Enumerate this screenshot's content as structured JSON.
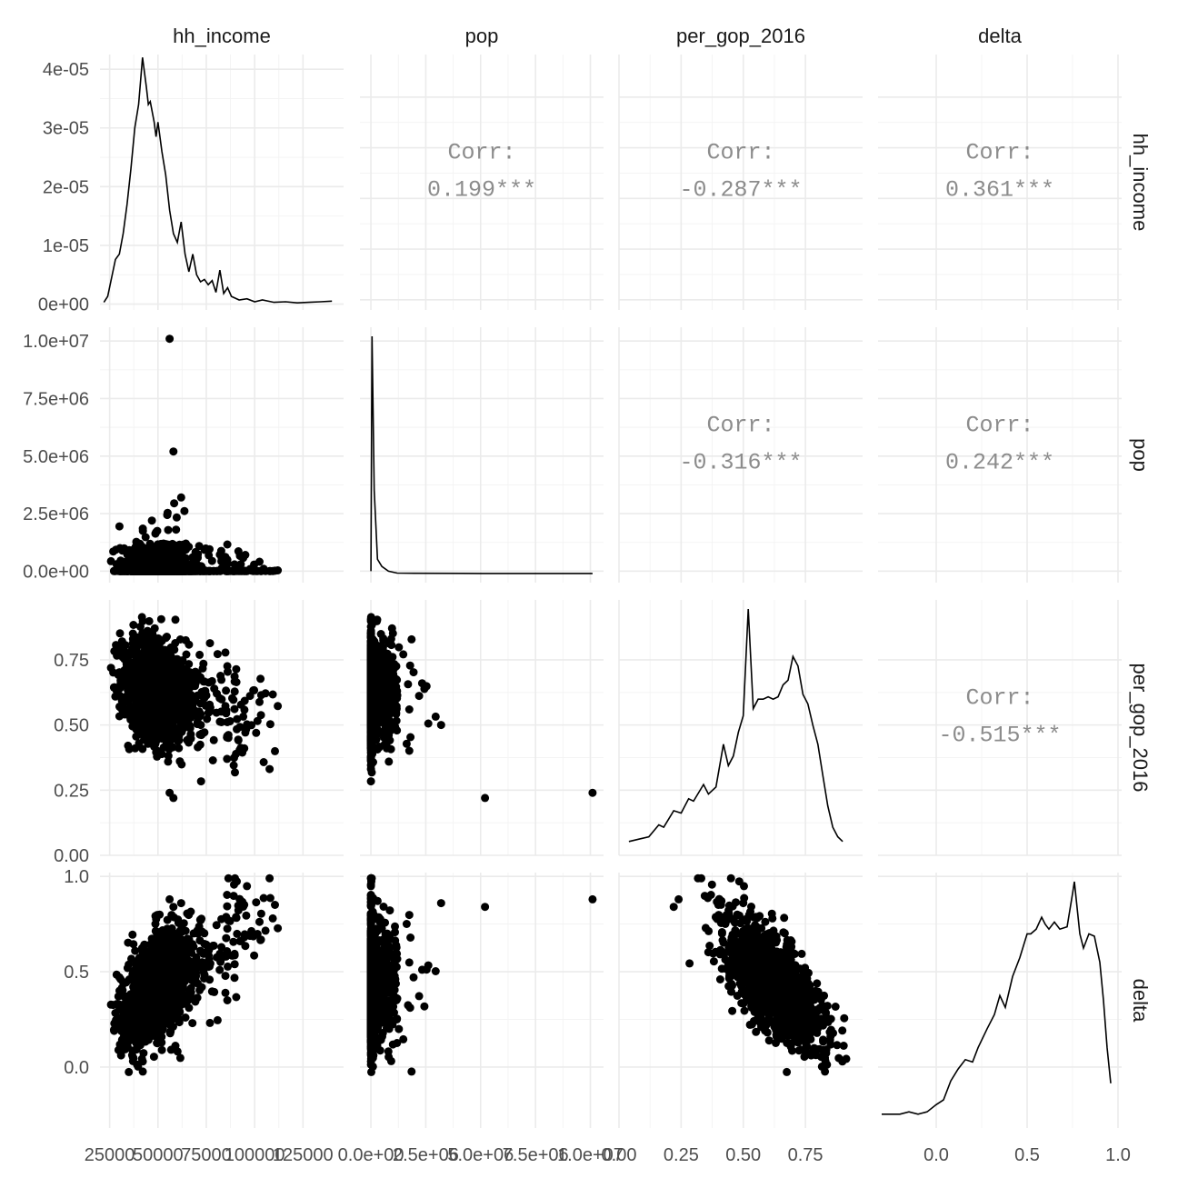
{
  "chart_data": {
    "type": "scatter-matrix",
    "variables": [
      "hh_income",
      "pop",
      "per_gop_2016",
      "delta"
    ],
    "axes": {
      "hh_income": {
        "range": [
          20000,
          146000
        ],
        "breaks": [
          25000,
          50000,
          75000,
          100000,
          125000
        ],
        "tick_labels": [
          "25000",
          "50000",
          "75000",
          "100000",
          "125000"
        ]
      },
      "pop": {
        "range": [
          -500000,
          10600000
        ],
        "breaks": [
          0,
          2500000,
          5000000,
          7500000,
          10000000
        ],
        "tick_labels": [
          "0.0e+00",
          "2.5e+06",
          "5.0e+06",
          "7.5e+06",
          "1.0e+07"
        ]
      },
      "per_gop_2016": {
        "range": [
          0,
          0.98
        ],
        "breaks": [
          0,
          0.25,
          0.5,
          0.75
        ],
        "tick_labels": [
          "0.00",
          "0.25",
          "0.50",
          "0.75"
        ]
      },
      "delta": {
        "range": [
          -0.32,
          1.02
        ],
        "breaks": [
          0,
          0.5,
          1
        ],
        "tick_labels": [
          "0.0",
          "0.5",
          "1.0"
        ]
      }
    },
    "density_axis": {
      "range": [
        -1e-06,
        4.25e-05
      ],
      "breaks": [
        0,
        1e-05,
        2e-05,
        3e-05,
        4e-05
      ],
      "tick_labels": [
        "0e+00",
        "1e-05",
        "2e-05",
        "3e-05",
        "4e-05"
      ]
    },
    "correlations": [
      {
        "row": "hh_income",
        "col": "pop",
        "label": "Corr:",
        "value": "0.199***"
      },
      {
        "row": "hh_income",
        "col": "per_gop_2016",
        "label": "Corr:",
        "value": "-0.287***"
      },
      {
        "row": "hh_income",
        "col": "delta",
        "label": "Corr:",
        "value": "0.361***"
      },
      {
        "row": "pop",
        "col": "per_gop_2016",
        "label": "Corr:",
        "value": "-0.316***"
      },
      {
        "row": "pop",
        "col": "delta",
        "label": "Corr:",
        "value": "0.242***"
      },
      {
        "row": "per_gop_2016",
        "col": "delta",
        "label": "Corr:",
        "value": "-0.515***"
      }
    ],
    "densities": {
      "hh_income": [
        [
          22000,
          3e-07
        ],
        [
          24000,
          1.3e-06
        ],
        [
          26000,
          4.5e-06
        ],
        [
          28000,
          7.6e-06
        ],
        [
          30000,
          8.5e-06
        ],
        [
          32000,
          1.2e-05
        ],
        [
          34000,
          1.7e-05
        ],
        [
          36000,
          2.3e-05
        ],
        [
          38000,
          3e-05
        ],
        [
          40000,
          3.4e-05
        ],
        [
          42000,
          4.2e-05
        ],
        [
          44000,
          3.7e-05
        ],
        [
          45000,
          3.4e-05
        ],
        [
          46000,
          3.45e-05
        ],
        [
          48000,
          3.1e-05
        ],
        [
          49000,
          2.85e-05
        ],
        [
          50000,
          3.1e-05
        ],
        [
          52000,
          2.6e-05
        ],
        [
          54000,
          2.2e-05
        ],
        [
          56000,
          1.6e-05
        ],
        [
          58000,
          1.2e-05
        ],
        [
          60000,
          1.05e-05
        ],
        [
          62000,
          1.4e-05
        ],
        [
          64000,
          8.5e-06
        ],
        [
          66000,
          5.5e-06
        ],
        [
          68000,
          8.5e-06
        ],
        [
          70000,
          5e-06
        ],
        [
          72000,
          3.8e-06
        ],
        [
          74000,
          4.2e-06
        ],
        [
          76000,
          3.3e-06
        ],
        [
          78000,
          4e-06
        ],
        [
          80000,
          2e-06
        ],
        [
          82000,
          5.8e-06
        ],
        [
          84000,
          1.8e-06
        ],
        [
          86000,
          2.8e-06
        ],
        [
          88000,
          1.3e-06
        ],
        [
          92000,
          7e-07
        ],
        [
          96000,
          9e-07
        ],
        [
          100000,
          4e-07
        ],
        [
          104000,
          7e-07
        ],
        [
          110000,
          3e-07
        ],
        [
          116000,
          4e-07
        ],
        [
          122000,
          2e-07
        ],
        [
          128000,
          3e-07
        ],
        [
          134000,
          4e-07
        ],
        [
          140000,
          5e-07
        ]
      ],
      "pop": [
        [
          0,
          0.01
        ],
        [
          50000,
          1.0
        ],
        [
          150000,
          0.35
        ],
        [
          300000,
          0.06
        ],
        [
          500000,
          0.03
        ],
        [
          800000,
          0.01
        ],
        [
          1200000,
          0.002
        ],
        [
          2000000,
          0.001
        ],
        [
          5000000,
          0.0005
        ],
        [
          10100000,
          0.0005
        ]
      ],
      "per_gop_2016": [
        [
          0.04,
          0.02
        ],
        [
          0.08,
          0.03
        ],
        [
          0.12,
          0.04
        ],
        [
          0.16,
          0.09
        ],
        [
          0.18,
          0.08
        ],
        [
          0.22,
          0.15
        ],
        [
          0.25,
          0.14
        ],
        [
          0.28,
          0.2
        ],
        [
          0.3,
          0.19
        ],
        [
          0.34,
          0.26
        ],
        [
          0.36,
          0.22
        ],
        [
          0.39,
          0.25
        ],
        [
          0.42,
          0.43
        ],
        [
          0.44,
          0.34
        ],
        [
          0.46,
          0.38
        ],
        [
          0.48,
          0.48
        ],
        [
          0.5,
          0.55
        ],
        [
          0.52,
          1.0
        ],
        [
          0.54,
          0.58
        ],
        [
          0.56,
          0.62
        ],
        [
          0.58,
          0.62
        ],
        [
          0.6,
          0.63
        ],
        [
          0.62,
          0.62
        ],
        [
          0.64,
          0.63
        ],
        [
          0.66,
          0.68
        ],
        [
          0.68,
          0.7
        ],
        [
          0.7,
          0.8
        ],
        [
          0.72,
          0.76
        ],
        [
          0.74,
          0.64
        ],
        [
          0.76,
          0.6
        ],
        [
          0.78,
          0.51
        ],
        [
          0.8,
          0.43
        ],
        [
          0.82,
          0.3
        ],
        [
          0.84,
          0.17
        ],
        [
          0.86,
          0.08
        ],
        [
          0.88,
          0.04
        ],
        [
          0.9,
          0.02
        ]
      ],
      "delta": [
        [
          -0.3,
          0.02
        ],
        [
          -0.2,
          0.02
        ],
        [
          -0.15,
          0.03
        ],
        [
          -0.1,
          0.02
        ],
        [
          -0.05,
          0.03
        ],
        [
          0.0,
          0.06
        ],
        [
          0.04,
          0.08
        ],
        [
          0.08,
          0.16
        ],
        [
          0.12,
          0.21
        ],
        [
          0.16,
          0.25
        ],
        [
          0.2,
          0.24
        ],
        [
          0.23,
          0.3
        ],
        [
          0.28,
          0.38
        ],
        [
          0.32,
          0.44
        ],
        [
          0.35,
          0.52
        ],
        [
          0.38,
          0.47
        ],
        [
          0.42,
          0.6
        ],
        [
          0.46,
          0.68
        ],
        [
          0.5,
          0.78
        ],
        [
          0.52,
          0.78
        ],
        [
          0.55,
          0.8
        ],
        [
          0.58,
          0.85
        ],
        [
          0.6,
          0.82
        ],
        [
          0.62,
          0.8
        ],
        [
          0.65,
          0.83
        ],
        [
          0.68,
          0.8
        ],
        [
          0.72,
          0.81
        ],
        [
          0.75,
          0.95
        ],
        [
          0.76,
          1.0
        ],
        [
          0.79,
          0.78
        ],
        [
          0.81,
          0.72
        ],
        [
          0.84,
          0.78
        ],
        [
          0.87,
          0.77
        ],
        [
          0.9,
          0.66
        ],
        [
          0.92,
          0.5
        ],
        [
          0.94,
          0.3
        ],
        [
          0.96,
          0.15
        ]
      ]
    },
    "scatter_seed": 7,
    "grid": true,
    "legend": "none"
  }
}
